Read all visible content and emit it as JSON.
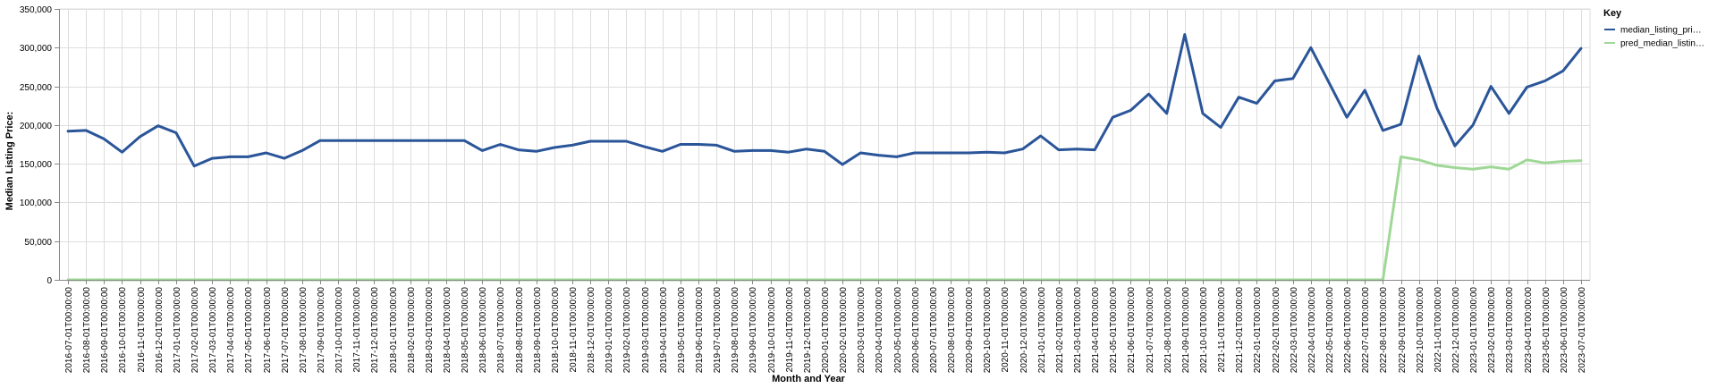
{
  "chart_data": {
    "type": "line",
    "xlabel": "Month and Year",
    "ylabel": "Median Listing Price:",
    "ylim": [
      0,
      350000
    ],
    "y_ticks": [
      0,
      50000,
      100000,
      150000,
      200000,
      250000,
      300000,
      350000
    ],
    "y_tick_labels": [
      "0",
      "50,000",
      "100,000",
      "150,000",
      "200,000",
      "250,000",
      "300,000",
      "350,000"
    ],
    "grid": true,
    "legend_title": "Key",
    "legend_position": "top-right",
    "x": [
      "2016-07-01T00:00:00",
      "2016-08-01T00:00:00",
      "2016-09-01T00:00:00",
      "2016-10-01T00:00:00",
      "2016-11-01T00:00:00",
      "2016-12-01T00:00:00",
      "2017-01-01T00:00:00",
      "2017-02-01T00:00:00",
      "2017-03-01T00:00:00",
      "2017-04-01T00:00:00",
      "2017-05-01T00:00:00",
      "2017-06-01T00:00:00",
      "2017-07-01T00:00:00",
      "2017-08-01T00:00:00",
      "2017-09-01T00:00:00",
      "2017-10-01T00:00:00",
      "2017-11-01T00:00:00",
      "2017-12-01T00:00:00",
      "2018-01-01T00:00:00",
      "2018-02-01T00:00:00",
      "2018-03-01T00:00:00",
      "2018-04-01T00:00:00",
      "2018-05-01T00:00:00",
      "2018-06-01T00:00:00",
      "2018-07-01T00:00:00",
      "2018-08-01T00:00:00",
      "2018-09-01T00:00:00",
      "2018-10-01T00:00:00",
      "2018-11-01T00:00:00",
      "2018-12-01T00:00:00",
      "2019-01-01T00:00:00",
      "2019-02-01T00:00:00",
      "2019-03-01T00:00:00",
      "2019-04-01T00:00:00",
      "2019-05-01T00:00:00",
      "2019-06-01T00:00:00",
      "2019-07-01T00:00:00",
      "2019-08-01T00:00:00",
      "2019-09-01T00:00:00",
      "2019-10-01T00:00:00",
      "2019-11-01T00:00:00",
      "2019-12-01T00:00:00",
      "2020-01-01T00:00:00",
      "2020-02-01T00:00:00",
      "2020-03-01T00:00:00",
      "2020-04-01T00:00:00",
      "2020-05-01T00:00:00",
      "2020-06-01T00:00:00",
      "2020-07-01T00:00:00",
      "2020-08-01T00:00:00",
      "2020-09-01T00:00:00",
      "2020-10-01T00:00:00",
      "2020-11-01T00:00:00",
      "2020-12-01T00:00:00",
      "2021-01-01T00:00:00",
      "2021-02-01T00:00:00",
      "2021-03-01T00:00:00",
      "2021-04-01T00:00:00",
      "2021-05-01T00:00:00",
      "2021-06-01T00:00:00",
      "2021-07-01T00:00:00",
      "2021-08-01T00:00:00",
      "2021-09-01T00:00:00",
      "2021-10-01T00:00:00",
      "2021-11-01T00:00:00",
      "2021-12-01T00:00:00",
      "2022-01-01T00:00:00",
      "2022-02-01T00:00:00",
      "2022-03-01T00:00:00",
      "2022-04-01T00:00:00",
      "2022-05-01T00:00:00",
      "2022-06-01T00:00:00",
      "2022-07-01T00:00:00",
      "2022-08-01T00:00:00",
      "2022-09-01T00:00:00",
      "2022-10-01T00:00:00",
      "2022-11-01T00:00:00",
      "2022-12-01T00:00:00",
      "2023-01-01T00:00:00",
      "2023-02-01T00:00:00",
      "2023-03-01T00:00:00",
      "2023-04-01T00:00:00",
      "2023-05-01T00:00:00",
      "2023-06-01T00:00:00",
      "2023-07-01T00:00:00"
    ],
    "series": [
      {
        "name": "median_listing_pri…",
        "color": "#2a5599",
        "values": [
          192000,
          193000,
          182000,
          165000,
          185000,
          199000,
          190000,
          147000,
          157000,
          159000,
          159000,
          164000,
          157000,
          167000,
          180000,
          180000,
          180000,
          180000,
          180000,
          180000,
          180000,
          180000,
          180000,
          167000,
          175000,
          168000,
          166000,
          171000,
          174000,
          179000,
          179000,
          179000,
          172000,
          166000,
          175000,
          175000,
          174000,
          166000,
          167000,
          167000,
          165000,
          169000,
          166000,
          149000,
          164000,
          161000,
          159000,
          164000,
          164000,
          164000,
          164000,
          165000,
          164000,
          169000,
          186000,
          168000,
          169000,
          168000,
          210000,
          219000,
          240000,
          215000,
          317000,
          215000,
          197000,
          236000,
          228000,
          257000,
          260000,
          300000,
          255000,
          210000,
          245000,
          193000,
          201000,
          289000,
          222000,
          173000,
          200000,
          250000,
          215000,
          249000,
          257000,
          270000,
          299000
        ]
      },
      {
        "name": "pred_median_listin…",
        "color": "#9fd896",
        "values": [
          0,
          0,
          0,
          0,
          0,
          0,
          0,
          0,
          0,
          0,
          0,
          0,
          0,
          0,
          0,
          0,
          0,
          0,
          0,
          0,
          0,
          0,
          0,
          0,
          0,
          0,
          0,
          0,
          0,
          0,
          0,
          0,
          0,
          0,
          0,
          0,
          0,
          0,
          0,
          0,
          0,
          0,
          0,
          0,
          0,
          0,
          0,
          0,
          0,
          0,
          0,
          0,
          0,
          0,
          0,
          0,
          0,
          0,
          0,
          0,
          0,
          0,
          0,
          0,
          0,
          0,
          0,
          0,
          0,
          0,
          0,
          0,
          0,
          0,
          159000,
          155000,
          148000,
          145000,
          143000,
          146000,
          143000,
          155000,
          151000,
          153000,
          154000
        ]
      }
    ]
  }
}
